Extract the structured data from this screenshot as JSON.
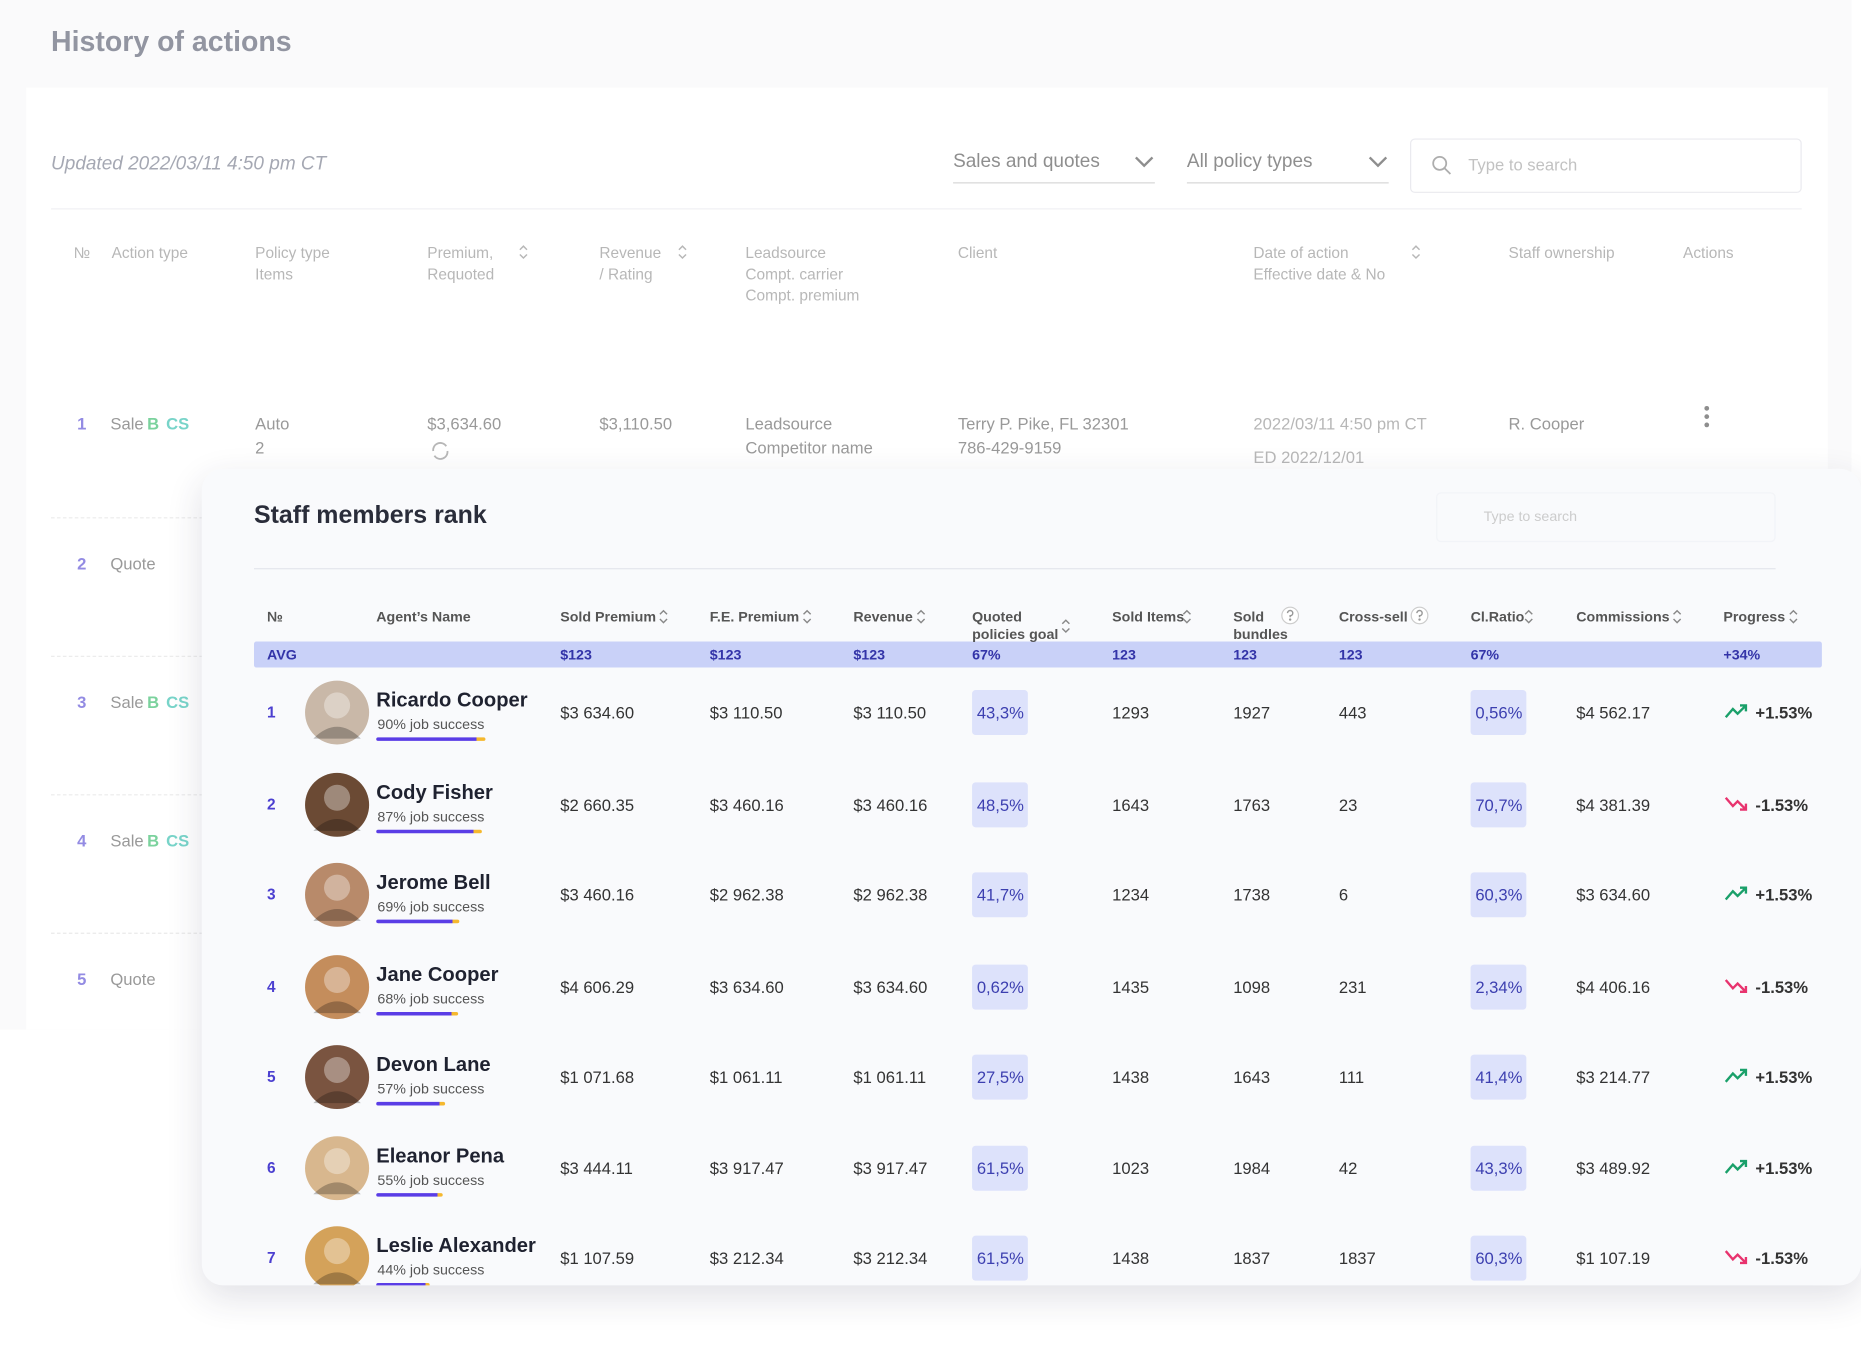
{
  "history": {
    "title": "History of actions",
    "updated": "Updated 2022/03/11 4:50 pm CT",
    "filters": [
      "Sales and quotes",
      "All policy types"
    ],
    "search_placeholder": "Type to search",
    "columns": [
      [
        "№"
      ],
      [
        "Action type"
      ],
      [
        "Policy type",
        "Items"
      ],
      [
        "Premium,",
        "Requoted"
      ],
      [
        "Revenue",
        "/ Rating"
      ],
      [
        "Leadsource",
        "Compt. carrier",
        "Compt. premium"
      ],
      [
        "Client"
      ],
      [
        "Date of action",
        "Effective date & No"
      ],
      [
        "Staff ownership"
      ],
      [
        "Actions"
      ]
    ],
    "rows": [
      {
        "no": "1",
        "action": "Sale",
        "badges": [
          "B",
          "CS"
        ],
        "policy": [
          "Auto",
          "2"
        ],
        "premium": "$3,634.60",
        "revenue": "$3,110.50",
        "leadsource": [
          "Leadsource",
          "Competitor name"
        ],
        "client": [
          "Terry P. Pike, FL 32301",
          "786-429-9159"
        ],
        "date": [
          "2022/03/11 4:50 pm CT",
          "ED 2022/12/01"
        ],
        "staff": "R. Cooper"
      },
      {
        "no": "2",
        "action": "Quote"
      },
      {
        "no": "3",
        "action": "Sale",
        "badges": [
          "B",
          "CS"
        ]
      },
      {
        "no": "4",
        "action": "Sale",
        "badges": [
          "B",
          "CS"
        ]
      },
      {
        "no": "5",
        "action": "Quote"
      }
    ]
  },
  "staff": {
    "title": "Staff members rank",
    "search_placeholder": "Type to search",
    "columns": [
      [
        "№"
      ],
      [
        "Agent’s Name"
      ],
      [
        "Sold Premium"
      ],
      [
        "F.E. Premium"
      ],
      [
        "Revenue"
      ],
      [
        "Quoted",
        "policies goal"
      ],
      [
        "Sold Items"
      ],
      [
        "Sold",
        "bundles"
      ],
      [
        "Cross-sell"
      ],
      [
        "Cl.Ratio"
      ],
      [
        "Commissions"
      ],
      [
        "Progress"
      ]
    ],
    "avg": [
      "AVG",
      "$123",
      "$123",
      "$123",
      "67%",
      "123",
      "123",
      "123",
      "67%",
      null,
      "+34%"
    ],
    "rows": [
      [
        "1",
        "Ricardo Cooper",
        "90% job success",
        "$3 634.60",
        "$3 110.50",
        "$3 110.50",
        "43,3%",
        "1293",
        "1927",
        "443",
        "0,56%",
        "$4 562.17",
        "+1.53%"
      ],
      [
        "2",
        "Cody Fisher",
        "87% job success",
        "$2 660.35",
        "$3 460.16",
        "$3 460.16",
        "48,5%",
        "1643",
        "1763",
        "23",
        "70,7%",
        "$4 381.39",
        "-1.53%"
      ],
      [
        "3",
        "Jerome Bell",
        "69% job success",
        "$3 460.16",
        "$2 962.38",
        "$2 962.38",
        "41,7%",
        "1234",
        "1738",
        "6",
        "60,3%",
        "$3 634.60",
        "+1.53%"
      ],
      [
        "4",
        "Jane Cooper",
        "68% job success",
        "$4 606.29",
        "$3 634.60",
        "$3 634.60",
        "0,62%",
        "1435",
        "1098",
        "231",
        "2,34%",
        "$4 406.16",
        "-1.53%"
      ],
      [
        "5",
        "Devon Lane",
        "57% job success",
        "$1 071.68",
        "$1 061.11",
        "$1 061.11",
        "27,5%",
        "1438",
        "1643",
        "111",
        "41,4%",
        "$3 214.77",
        "+1.53%"
      ],
      [
        "6",
        "Eleanor Pena",
        "55% job success",
        "$3 444.11",
        "$3 917.47",
        "$3 917.47",
        "61,5%",
        "1023",
        "1984",
        "42",
        "43,3%",
        "$3 489.92",
        "+1.53%"
      ],
      [
        "7",
        "Leslie Alexander",
        "44% job success",
        "$1 107.59",
        "$3 212.34",
        "$3 212.34",
        "61,5%",
        "1438",
        "1837",
        "1837",
        "60,3%",
        "$1 107.19",
        "-1.53%"
      ]
    ]
  }
}
